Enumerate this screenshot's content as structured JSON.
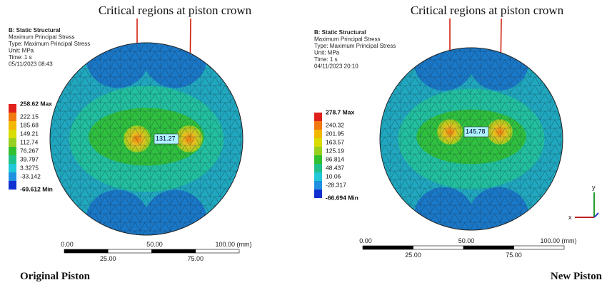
{
  "panels": [
    {
      "annotation": "Critical regions at piston crown",
      "header": [
        "B: Static Structural",
        "Maximum Principal Stress",
        "Type: Maximum Principal Stress",
        "Unit: MPa",
        "Time: 1 s",
        "05/11/2023 08:43"
      ],
      "legend": [
        "258.62 Max",
        "222.15",
        "185.68",
        "149.21",
        "112.74",
        "76.267",
        "39.797",
        "3.3275",
        "-33.142",
        "-69.612 Min"
      ],
      "probe": "131.27",
      "scale_top": [
        "0.00",
        "50.00",
        "100.00 (mm)"
      ],
      "scale_bottom": [
        "25.00",
        "75.00"
      ],
      "caption": "Original Piston"
    },
    {
      "annotation": "Critical regions at piston crown",
      "header": [
        "B: Static Structural",
        "Maximum Principal Stress",
        "Type: Maximum Principal Stress",
        "Unit: MPa",
        "Time: 1 s",
        "04/11/2023 20:10"
      ],
      "legend": [
        "278.7 Max",
        "240.32",
        "201.95",
        "163.57",
        "125.19",
        "86.814",
        "48.437",
        "10.06",
        "-28.317",
        "-66.694 Min"
      ],
      "probe": "145.78",
      "scale_top": [
        "0.00",
        "50.00",
        "100.00 (mm)"
      ],
      "scale_bottom": [
        "25.00",
        "75.00"
      ],
      "caption": "New Piston"
    }
  ],
  "legend_colors": [
    "#e0201a",
    "#f07a10",
    "#f2b800",
    "#d8dc00",
    "#98d020",
    "#30c030",
    "#20c08a",
    "#20c8d8",
    "#2090e0",
    "#1030d0"
  ],
  "triad": {
    "y": "y",
    "x": "x"
  }
}
